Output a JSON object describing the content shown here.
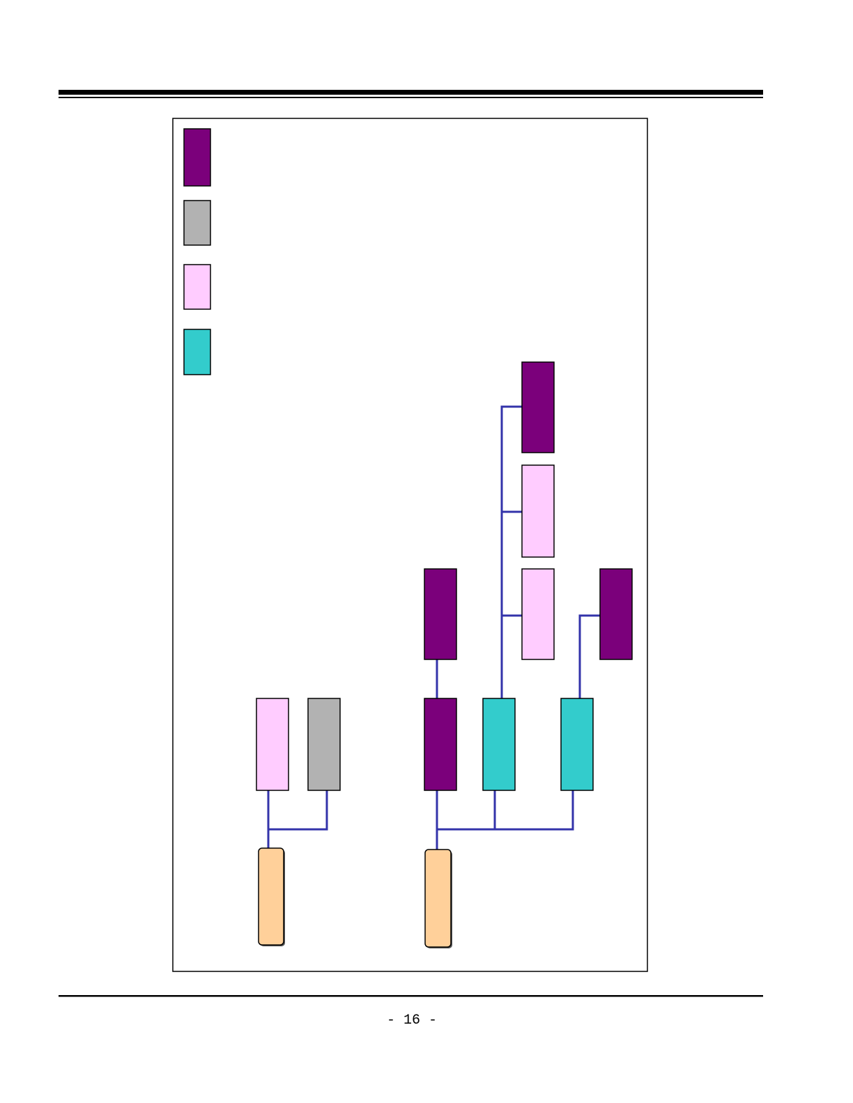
{
  "footer": {
    "page_number": "- 16 -"
  }
}
